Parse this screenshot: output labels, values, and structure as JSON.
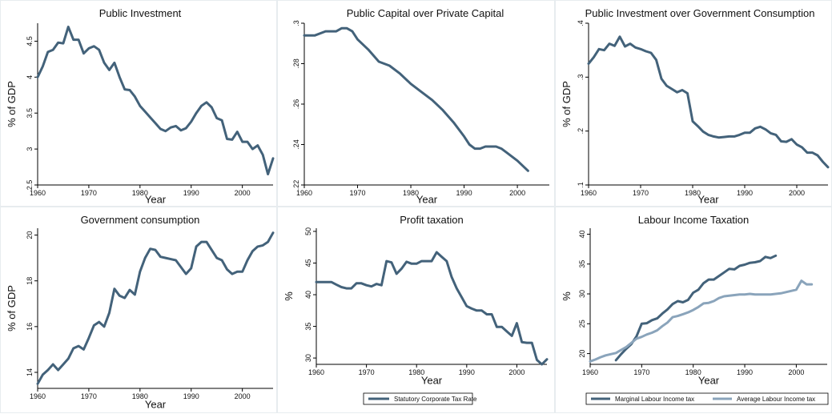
{
  "colors": {
    "dark": "#43627a",
    "light": "#8aa4bb",
    "axis": "#000000",
    "frame": "#e7ecef"
  },
  "chart_data": [
    {
      "type": "line",
      "title": "Public Investment",
      "xlabel": "Year",
      "ylabel": "% of GDP",
      "xlim": [
        1960,
        2006
      ],
      "ylim": [
        2.5,
        4.75
      ],
      "xticks": [
        1960,
        1970,
        1980,
        1990,
        2000
      ],
      "yticks": [
        2.5,
        3,
        3.5,
        4,
        4.5
      ],
      "ytick_labels": [
        "2.5",
        "3",
        "3.5",
        "4",
        "4.5"
      ],
      "series": [
        {
          "color": "dark",
          "x": [
            1960,
            1961,
            1962,
            1963,
            1964,
            1965,
            1966,
            1967,
            1968,
            1969,
            1970,
            1971,
            1972,
            1973,
            1974,
            1975,
            1976,
            1977,
            1978,
            1979,
            1980,
            1981,
            1982,
            1983,
            1984,
            1985,
            1986,
            1987,
            1988,
            1989,
            1990,
            1991,
            1992,
            1993,
            1994,
            1995,
            1996,
            1997,
            1998,
            1999,
            2000,
            2001,
            2002,
            2003,
            2004,
            2005,
            2006
          ],
          "y": [
            4.0,
            4.15,
            4.35,
            4.38,
            4.48,
            4.47,
            4.7,
            4.52,
            4.52,
            4.33,
            4.4,
            4.43,
            4.38,
            4.2,
            4.1,
            4.2,
            4.0,
            3.83,
            3.82,
            3.73,
            3.6,
            3.52,
            3.44,
            3.36,
            3.28,
            3.25,
            3.3,
            3.32,
            3.26,
            3.29,
            3.38,
            3.5,
            3.6,
            3.65,
            3.58,
            3.43,
            3.4,
            3.14,
            3.13,
            3.24,
            3.1,
            3.1,
            3.0,
            3.05,
            2.92,
            2.65,
            2.87
          ]
        }
      ],
      "legend": []
    },
    {
      "type": "line",
      "title": "Public Capital over Private Capital",
      "xlabel": "Year",
      "ylabel": "",
      "xlim": [
        1960,
        2006
      ],
      "ylim": [
        0.22,
        0.3
      ],
      "xticks": [
        1960,
        1970,
        1980,
        1990,
        2000
      ],
      "yticks": [
        0.22,
        0.24,
        0.26,
        0.28,
        0.3
      ],
      "ytick_labels": [
        ".22",
        ".24",
        ".26",
        ".28",
        ".3"
      ],
      "series": [
        {
          "color": "dark",
          "x": [
            1960,
            1962,
            1964,
            1966,
            1967,
            1968,
            1969,
            1970,
            1972,
            1974,
            1976,
            1978,
            1980,
            1982,
            1984,
            1986,
            1988,
            1990,
            1991,
            1992,
            1993,
            1994,
            1995,
            1996,
            1997,
            1998,
            2000,
            2002
          ],
          "y": [
            0.294,
            0.294,
            0.296,
            0.296,
            0.2975,
            0.2975,
            0.296,
            0.292,
            0.287,
            0.281,
            0.279,
            0.275,
            0.27,
            0.266,
            0.262,
            0.257,
            0.251,
            0.244,
            0.24,
            0.238,
            0.238,
            0.239,
            0.239,
            0.239,
            0.238,
            0.236,
            0.232,
            0.227
          ]
        }
      ],
      "legend": []
    },
    {
      "type": "line",
      "title": "Public Investment over Government Consumption",
      "xlabel": "Year",
      "ylabel": "% of GDP",
      "xlim": [
        1960,
        2006
      ],
      "ylim": [
        0.1,
        0.4
      ],
      "xticks": [
        1960,
        1970,
        1980,
        1990,
        2000
      ],
      "yticks": [
        0.1,
        0.2,
        0.3,
        0.4
      ],
      "ytick_labels": [
        ".1",
        ".2",
        ".3",
        ".4"
      ],
      "series": [
        {
          "color": "dark",
          "x": [
            1960,
            1961,
            1962,
            1963,
            1964,
            1965,
            1966,
            1967,
            1968,
            1969,
            1970,
            1971,
            1972,
            1973,
            1974,
            1975,
            1976,
            1977,
            1978,
            1979,
            1980,
            1981,
            1982,
            1983,
            1984,
            1985,
            1986,
            1987,
            1988,
            1989,
            1990,
            1991,
            1992,
            1993,
            1994,
            1995,
            1996,
            1997,
            1998,
            1999,
            2000,
            2001,
            2002,
            2003,
            2004,
            2005,
            2006
          ],
          "y": [
            0.325,
            0.337,
            0.352,
            0.35,
            0.362,
            0.358,
            0.375,
            0.357,
            0.362,
            0.355,
            0.352,
            0.348,
            0.345,
            0.332,
            0.297,
            0.284,
            0.278,
            0.272,
            0.276,
            0.27,
            0.218,
            0.209,
            0.199,
            0.193,
            0.19,
            0.188,
            0.189,
            0.19,
            0.19,
            0.193,
            0.197,
            0.197,
            0.205,
            0.208,
            0.203,
            0.196,
            0.193,
            0.181,
            0.18,
            0.185,
            0.175,
            0.17,
            0.16,
            0.16,
            0.155,
            0.143,
            0.133
          ]
        }
      ],
      "legend": []
    },
    {
      "type": "line",
      "title": "Government consumption",
      "xlabel": "Year",
      "ylabel": "% of GDP",
      "xlim": [
        1960,
        2006
      ],
      "ylim": [
        13.3,
        20.3
      ],
      "xticks": [
        1960,
        1970,
        1980,
        1990,
        2000
      ],
      "yticks": [
        14,
        16,
        18,
        20
      ],
      "ytick_labels": [
        "14",
        "16",
        "18",
        "20"
      ],
      "series": [
        {
          "color": "dark",
          "x": [
            1960,
            1961,
            1962,
            1963,
            1964,
            1965,
            1966,
            1967,
            1968,
            1969,
            1970,
            1971,
            1972,
            1973,
            1974,
            1975,
            1976,
            1977,
            1978,
            1979,
            1980,
            1981,
            1982,
            1983,
            1984,
            1985,
            1986,
            1987,
            1988,
            1989,
            1990,
            1991,
            1992,
            1993,
            1994,
            1995,
            1996,
            1997,
            1998,
            1999,
            2000,
            2001,
            2002,
            2003,
            2004,
            2005,
            2006
          ],
          "y": [
            13.5,
            13.9,
            14.1,
            14.35,
            14.1,
            14.35,
            14.6,
            15.05,
            15.15,
            15.0,
            15.5,
            16.05,
            16.2,
            16.0,
            16.6,
            17.65,
            17.35,
            17.25,
            17.6,
            17.4,
            18.4,
            19.0,
            19.4,
            19.35,
            19.05,
            19.0,
            18.95,
            18.9,
            18.6,
            18.3,
            18.55,
            19.5,
            19.7,
            19.7,
            19.35,
            19.0,
            18.9,
            18.5,
            18.3,
            18.4,
            18.4,
            18.9,
            19.3,
            19.5,
            19.55,
            19.7,
            20.1
          ]
        }
      ],
      "legend": []
    },
    {
      "type": "line",
      "title": "Profit taxation",
      "xlabel": "Year",
      "ylabel": "%",
      "xlim": [
        1960,
        2006
      ],
      "ylim": [
        29,
        50.5
      ],
      "xticks": [
        1960,
        1970,
        1980,
        1990,
        2000
      ],
      "yticks": [
        30,
        35,
        40,
        45,
        50
      ],
      "ytick_labels": [
        "30",
        "35",
        "40",
        "45",
        "50"
      ],
      "series": [
        {
          "color": "dark",
          "name": "Statutory Corporate Tax Rate",
          "x": [
            1960,
            1961,
            1962,
            1963,
            1964,
            1965,
            1966,
            1967,
            1968,
            1969,
            1970,
            1971,
            1972,
            1973,
            1974,
            1975,
            1976,
            1977,
            1978,
            1979,
            1980,
            1981,
            1982,
            1983,
            1984,
            1985,
            1986,
            1987,
            1988,
            1989,
            1990,
            1991,
            1992,
            1993,
            1994,
            1995,
            1996,
            1997,
            1998,
            1999,
            2000,
            2001,
            2002,
            2003,
            2004,
            2005,
            2006
          ],
          "y": [
            42.0,
            42.0,
            42.0,
            42.0,
            41.6,
            41.2,
            41.0,
            41.0,
            41.8,
            41.8,
            41.5,
            41.3,
            41.7,
            41.5,
            45.3,
            45.1,
            43.3,
            44.1,
            45.2,
            44.9,
            44.9,
            45.3,
            45.3,
            45.3,
            46.7,
            46.0,
            45.3,
            42.8,
            41.0,
            39.6,
            38.2,
            37.8,
            37.5,
            37.5,
            36.9,
            36.9,
            34.9,
            34.9,
            34.2,
            33.5,
            35.5,
            32.5,
            32.4,
            32.4,
            29.7,
            29.0,
            29.8
          ]
        }
      ],
      "legend": [
        {
          "label": "Statutory Corporate Tax Rate",
          "color": "dark"
        }
      ]
    },
    {
      "type": "line",
      "title": "Labour Income Taxation",
      "xlabel": "Year",
      "ylabel": "%",
      "xlim": [
        1960,
        2006
      ],
      "ylim": [
        18.2,
        41
      ],
      "xticks": [
        1960,
        1970,
        1980,
        1990,
        2000
      ],
      "yticks": [
        20,
        25,
        30,
        35,
        40
      ],
      "ytick_labels": [
        "20",
        "25",
        "30",
        "35",
        "40"
      ],
      "series": [
        {
          "color": "dark",
          "name": "Marginal Labour Income tax",
          "x": [
            1965,
            1966,
            1967,
            1968,
            1969,
            1970,
            1971,
            1972,
            1973,
            1974,
            1975,
            1976,
            1977,
            1978,
            1979,
            1980,
            1981,
            1982,
            1983,
            1984,
            1985,
            1986,
            1987,
            1988,
            1989,
            1990,
            1991,
            1992,
            1993,
            1994,
            1995,
            1996
          ],
          "y": [
            18.9,
            19.9,
            20.8,
            21.6,
            22.9,
            25.0,
            25.1,
            25.6,
            25.9,
            26.7,
            27.4,
            28.3,
            28.8,
            28.6,
            29.0,
            30.2,
            30.7,
            31.8,
            32.4,
            32.4,
            33.0,
            33.6,
            34.2,
            34.1,
            34.7,
            34.9,
            35.2,
            35.3,
            35.5,
            36.2,
            36.0,
            36.4
          ]
        },
        {
          "color": "light",
          "name": "Average Labour Income tax",
          "x": [
            1960,
            1961,
            1962,
            1963,
            1964,
            1965,
            1966,
            1967,
            1968,
            1969,
            1970,
            1971,
            1972,
            1973,
            1974,
            1975,
            1976,
            1977,
            1978,
            1979,
            1980,
            1981,
            1982,
            1983,
            1984,
            1985,
            1986,
            1987,
            1988,
            1989,
            1990,
            1991,
            1992,
            1993,
            1994,
            1995,
            1996,
            1997,
            1998,
            1999,
            2000,
            2001,
            2002,
            2003
          ],
          "y": [
            18.7,
            19.0,
            19.4,
            19.7,
            19.9,
            20.1,
            20.6,
            21.1,
            21.8,
            22.5,
            22.8,
            23.2,
            23.5,
            23.9,
            24.6,
            25.2,
            26.1,
            26.3,
            26.6,
            26.9,
            27.3,
            27.8,
            28.4,
            28.5,
            28.8,
            29.3,
            29.6,
            29.7,
            29.8,
            29.9,
            29.9,
            30.0,
            29.9,
            29.9,
            29.9,
            29.9,
            30.0,
            30.1,
            30.3,
            30.5,
            30.7,
            32.2,
            31.6,
            31.6
          ]
        }
      ],
      "legend": [
        {
          "label": "Marginal Labour Income tax",
          "color": "dark"
        },
        {
          "label": "Average Labour Income tax",
          "color": "light"
        }
      ]
    }
  ]
}
